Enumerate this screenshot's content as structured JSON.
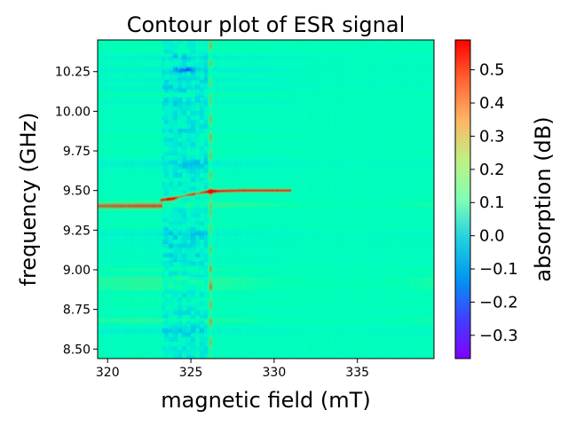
{
  "chart_data": {
    "type": "heatmap",
    "title": "Contour plot of ESR signal",
    "xlabel": "magnetic field (mT)",
    "ylabel": "frequency (GHz)",
    "xlim": [
      319.4,
      339.6
    ],
    "ylim": [
      8.44,
      10.45
    ],
    "xticks": [
      {
        "value": 320,
        "label": "320"
      },
      {
        "value": 325,
        "label": "325"
      },
      {
        "value": 330,
        "label": "330"
      },
      {
        "value": 335,
        "label": "335"
      }
    ],
    "yticks": [
      {
        "value": 8.5,
        "label": "8.50"
      },
      {
        "value": 8.75,
        "label": "8.75"
      },
      {
        "value": 9.0,
        "label": "9.00"
      },
      {
        "value": 9.25,
        "label": "9.25"
      },
      {
        "value": 9.5,
        "label": "9.50"
      },
      {
        "value": 9.75,
        "label": "9.75"
      },
      {
        "value": 10.0,
        "label": "10.00"
      },
      {
        "value": 10.25,
        "label": "10.25"
      }
    ],
    "colormap": "rainbow",
    "background_level": 0.08,
    "features": [
      {
        "kind": "resonance-line",
        "x": [
          323.2,
          323.9,
          324.8,
          325.6,
          326.2,
          328.0,
          331.0
        ],
        "y": [
          9.44,
          9.45,
          9.47,
          9.485,
          9.495,
          9.5,
          9.5
        ],
        "value": 0.45
      },
      {
        "kind": "hot-spot",
        "x": 323.8,
        "y": 9.445,
        "value": 0.55
      },
      {
        "kind": "hot-spot",
        "x": 326.2,
        "y": 9.495,
        "value": 0.5
      },
      {
        "kind": "input-band",
        "x_range": [
          319.4,
          323.3
        ],
        "y": 9.4,
        "value": 0.28
      },
      {
        "kind": "noisy-band",
        "x_range": [
          323.3,
          326.0
        ],
        "value": -0.07
      },
      {
        "kind": "vertical-stripe",
        "x": 326.2,
        "value": 0.25
      },
      {
        "kind": "dark-spot",
        "x": 324.6,
        "y": 10.26,
        "value": -0.2
      }
    ],
    "colorbar": {
      "label": "absorption (dB)",
      "vmin": -0.37,
      "vmax": 0.59,
      "ticks": [
        {
          "value": -0.3,
          "label": "−0.3"
        },
        {
          "value": -0.2,
          "label": "−0.2"
        },
        {
          "value": -0.1,
          "label": "−0.1"
        },
        {
          "value": 0.0,
          "label": "0.0"
        },
        {
          "value": 0.1,
          "label": "0.1"
        },
        {
          "value": 0.2,
          "label": "0.2"
        },
        {
          "value": 0.3,
          "label": "0.3"
        },
        {
          "value": 0.4,
          "label": "0.4"
        },
        {
          "value": 0.5,
          "label": "0.5"
        }
      ]
    }
  }
}
